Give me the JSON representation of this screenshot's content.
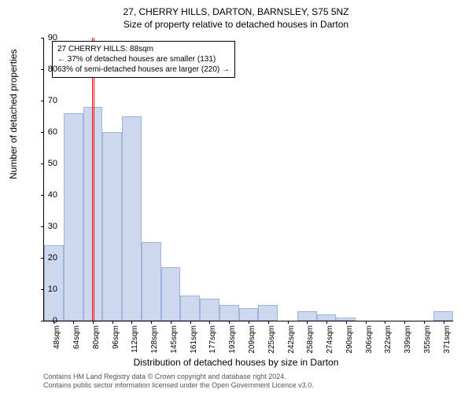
{
  "title_main": "27, CHERRY HILLS, DARTON, BARNSLEY, S75 5NZ",
  "title_sub": "Size of property relative to detached houses in Darton",
  "ylabel": "Number of detached properties",
  "xlabel": "Distribution of detached houses by size in Darton",
  "footer_line1": "Contains HM Land Registry data © Crown copyright and database right 2024.",
  "footer_line2": "Contains public sector information licensed under the Open Government Licence v3.0.",
  "annotation": {
    "line1": "27 CHERRY HILLS: 88sqm",
    "line2": "← 37% of detached houses are smaller (131)",
    "line3": "63% of semi-detached houses are larger (220) →"
  },
  "chart": {
    "type": "histogram",
    "ylim_max": 90,
    "ytick_step": 10,
    "yticks": [
      0,
      10,
      20,
      30,
      40,
      50,
      60,
      70,
      80,
      90
    ],
    "x_categories": [
      "48sqm",
      "64sqm",
      "80sqm",
      "96sqm",
      "112sqm",
      "128sqm",
      "145sqm",
      "161sqm",
      "177sqm",
      "193sqm",
      "209sqm",
      "225sqm",
      "242sqm",
      "258sqm",
      "274sqm",
      "290sqm",
      "306sqm",
      "322sqm",
      "339sqm",
      "355sqm",
      "371sqm"
    ],
    "values": [
      24,
      66,
      68,
      60,
      65,
      25,
      17,
      8,
      7,
      5,
      4,
      5,
      0,
      3,
      2,
      1,
      0,
      0,
      0,
      0,
      3
    ],
    "marker_value": 88,
    "x_min": 48,
    "x_bin_width": 16,
    "bar_fill": "#cdd8ee",
    "bar_border": "#9fb4da",
    "marker_color": "#ff0000",
    "background_color": "#ffffff"
  }
}
